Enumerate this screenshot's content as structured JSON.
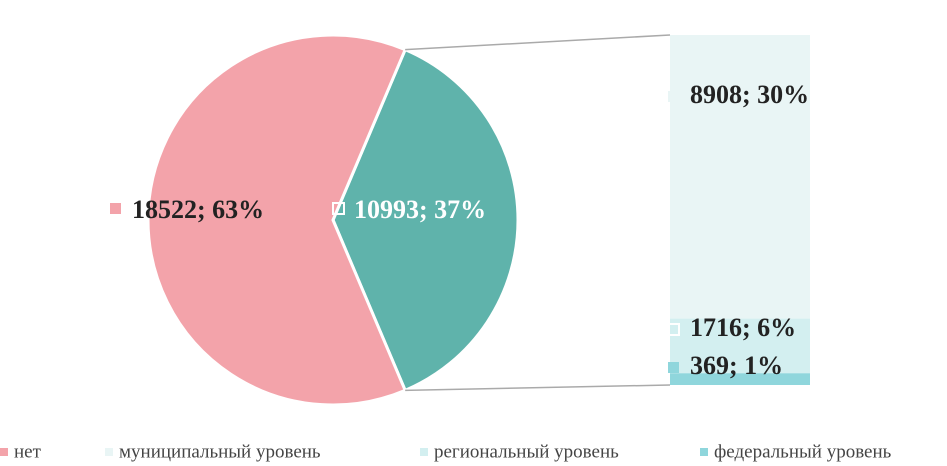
{
  "chart_data": {
    "type": "pie",
    "categories": [
      "нет",
      "муниципальный уровень",
      "региональный уровень",
      "федеральный уровень"
    ],
    "values": [
      18522,
      8908,
      1716,
      369
    ],
    "percents": [
      63,
      30,
      6,
      1
    ],
    "value_labels": [
      "18522; 63%",
      "8908; 30%",
      "1716; 6%",
      "369; 1%"
    ],
    "colors": [
      "#f3a3aa",
      "#e9f5f5",
      "#d3eff0",
      "#8fd6dc"
    ],
    "other": {
      "value": 10993,
      "percent": 37,
      "label": "10993; 37%",
      "color": "#5fb3ab"
    }
  }
}
